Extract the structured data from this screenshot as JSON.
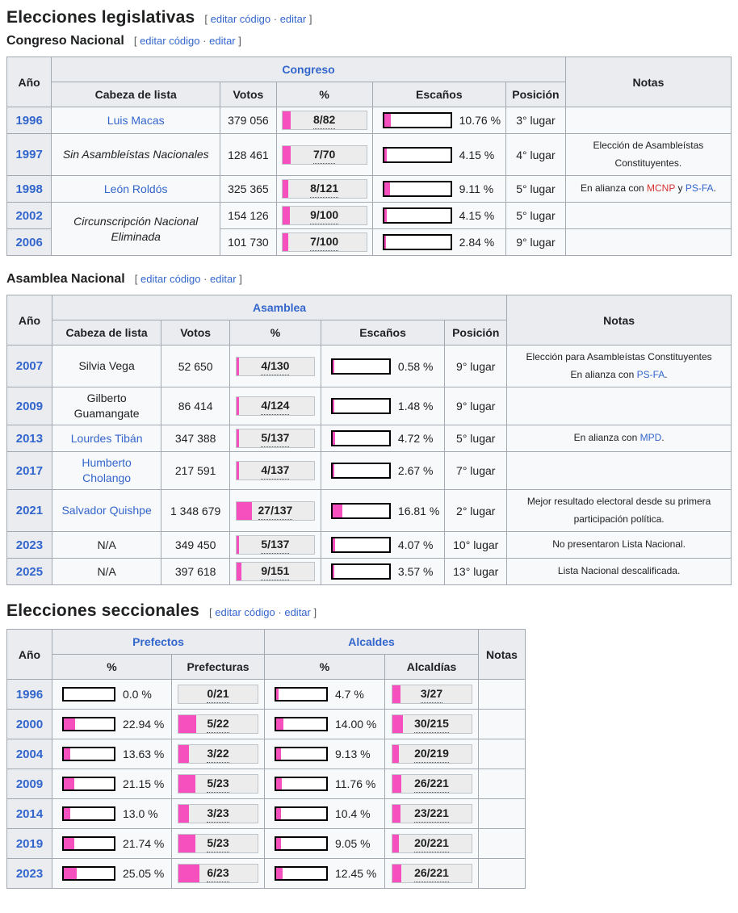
{
  "colors": {
    "pink": "#F650BE",
    "link": "#3366CC",
    "red": "#D73333"
  },
  "edit": {
    "open": "[",
    "code": "editar código",
    "sep": "·",
    "plain": "editar",
    "close": "]"
  },
  "headings": {
    "legislativas": "Elecciones legislativas",
    "congreso": "Congreso Nacional",
    "asamblea": "Asamblea Nacional",
    "seccionales": "Elecciones seccionales"
  },
  "congreso": {
    "header": {
      "year": "Año",
      "group": "Congreso",
      "cols": [
        "Cabeza de lista",
        "Votos",
        "%",
        "Escaños",
        "Posición"
      ],
      "notes": "Notas"
    },
    "rows": [
      {
        "year": "1996",
        "head": "Luis Macas",
        "votes": "379 056",
        "seats": {
          "label": "8/82",
          "fill": 9.76
        },
        "pct": {
          "label": "10.76 %",
          "fill": 10.76
        },
        "pos": "3° lugar"
      },
      {
        "year": "1997",
        "head": "Sin Asambleístas Nacionales",
        "votes": "128 461",
        "seats": {
          "label": "7/70",
          "fill": 10.0
        },
        "pct": {
          "label": "4.15 %",
          "fill": 4.15
        },
        "pos": "4° lugar",
        "note": [
          {
            "t": "Elección de Asambleístas Constituyentes."
          }
        ]
      },
      {
        "year": "1998",
        "head": "León Roldós",
        "votes": "325 365",
        "seats": {
          "label": "8/121",
          "fill": 6.61
        },
        "pct": {
          "label": "9.11 %",
          "fill": 9.11
        },
        "pos": "5° lugar",
        "note": [
          {
            "t": "En alianza con "
          },
          {
            "t": "MCNP"
          },
          {
            "t": " y "
          },
          {
            "t": "PS-FA"
          },
          {
            "t": "."
          }
        ]
      },
      {
        "year": "2002",
        "head": "Circunscripción Nacional Eliminada",
        "votes": "154 126",
        "seats": {
          "label": "9/100",
          "fill": 9.0
        },
        "pct": {
          "label": "4.15 %",
          "fill": 4.15
        },
        "pos": "5° lugar"
      },
      {
        "year": "2006",
        "votes": "101 730",
        "seats": {
          "label": "7/100",
          "fill": 7.0
        },
        "pct": {
          "label": "2.84 %",
          "fill": 2.84
        },
        "pos": "9° lugar"
      }
    ]
  },
  "asamblea": {
    "header": {
      "year": "Año",
      "group": "Asamblea",
      "cols": [
        "Cabeza de lista",
        "Votos",
        "%",
        "Escaños",
        "Posición"
      ],
      "notes": "Notas"
    },
    "rows": [
      {
        "year": "2007",
        "head": "Silvia Vega",
        "votes": "52 650",
        "seats": {
          "label": "4/130",
          "fill": 3.08
        },
        "pct": {
          "label": "0.58 %",
          "fill": 0.58
        },
        "pos": "9° lugar",
        "note": [
          {
            "t": "Elección para Asambleístas Constituyentes"
          }
        ],
        "note2": [
          {
            "t": "En alianza con "
          },
          {
            "t": "PS-FA"
          },
          {
            "t": "."
          }
        ]
      },
      {
        "year": "2009",
        "head": "Gilberto Guamangate",
        "votes": "86 414",
        "seats": {
          "label": "4/124",
          "fill": 3.23
        },
        "pct": {
          "label": "1.48 %",
          "fill": 1.48
        },
        "pos": "9° lugar"
      },
      {
        "year": "2013",
        "head": "Lourdes Tibán",
        "votes": "347 388",
        "seats": {
          "label": "5/137",
          "fill": 3.65
        },
        "pct": {
          "label": "4.72 %",
          "fill": 4.72
        },
        "pos": "5° lugar",
        "note": [
          {
            "t": "En alianza con "
          },
          {
            "t": "MPD"
          },
          {
            "t": "."
          }
        ]
      },
      {
        "year": "2017",
        "head": "Humberto Cholango",
        "votes": "217 591",
        "seats": {
          "label": "4/137",
          "fill": 2.92
        },
        "pct": {
          "label": "2.67 %",
          "fill": 2.67
        },
        "pos": "7° lugar"
      },
      {
        "year": "2021",
        "head": "Salvador Quishpe",
        "votes": "1 348 679",
        "seats": {
          "label": "27/137",
          "fill": 19.71
        },
        "pct": {
          "label": "16.81 %",
          "fill": 16.81
        },
        "pos": "2° lugar",
        "note": [
          {
            "t": "Mejor resultado electoral desde su primera participación política."
          }
        ]
      },
      {
        "year": "2023",
        "head": "N/A",
        "votes": "349 450",
        "seats": {
          "label": "5/137",
          "fill": 3.65
        },
        "pct": {
          "label": "4.07 %",
          "fill": 4.07
        },
        "pos": "10° lugar",
        "note": [
          {
            "t": "No presentaron Lista Nacional."
          }
        ]
      },
      {
        "year": "2025",
        "head": "N/A",
        "votes": "397 618",
        "seats": {
          "label": "9/151",
          "fill": 5.96
        },
        "pct": {
          "label": "3.57 %",
          "fill": 3.57
        },
        "pos": "13° lugar",
        "note": [
          {
            "t": "Lista Nacional descalificada."
          }
        ]
      }
    ]
  },
  "seccionales": {
    "header": {
      "year": "Año",
      "group1": "Prefectos",
      "group2": "Alcaldes",
      "sub": [
        "%",
        "Prefecturas",
        "%",
        "Alcaldías"
      ],
      "notes": "Notas"
    },
    "rows": [
      {
        "year": "1996",
        "p_pct": {
          "label": "0.0 %",
          "fill": 0
        },
        "pref": {
          "label": "0/21",
          "fill": 0
        },
        "a_pct": {
          "label": "4.7 %",
          "fill": 4.7
        },
        "alc": {
          "label": "3/27",
          "fill": 11.11
        }
      },
      {
        "year": "2000",
        "p_pct": {
          "label": "22.94 %",
          "fill": 22.94
        },
        "pref": {
          "label": "5/22",
          "fill": 22.73
        },
        "a_pct": {
          "label": "14.00 %",
          "fill": 14.0
        },
        "alc": {
          "label": "30/215",
          "fill": 13.95
        }
      },
      {
        "year": "2004",
        "p_pct": {
          "label": "13.63 %",
          "fill": 13.63
        },
        "pref": {
          "label": "3/22",
          "fill": 13.64
        },
        "a_pct": {
          "label": "9.13 %",
          "fill": 9.13
        },
        "alc": {
          "label": "20/219",
          "fill": 9.13
        }
      },
      {
        "year": "2009",
        "p_pct": {
          "label": "21.15 %",
          "fill": 21.15
        },
        "pref": {
          "label": "5/23",
          "fill": 21.74
        },
        "a_pct": {
          "label": "11.76 %",
          "fill": 11.76
        },
        "alc": {
          "label": "26/221",
          "fill": 11.76
        }
      },
      {
        "year": "2014",
        "p_pct": {
          "label": "13.0 %",
          "fill": 13.0
        },
        "pref": {
          "label": "3/23",
          "fill": 13.04
        },
        "a_pct": {
          "label": "10.4 %",
          "fill": 10.4
        },
        "alc": {
          "label": "23/221",
          "fill": 10.41
        }
      },
      {
        "year": "2019",
        "p_pct": {
          "label": "21.74 %",
          "fill": 21.74
        },
        "pref": {
          "label": "5/23",
          "fill": 21.74
        },
        "a_pct": {
          "label": "9.05 %",
          "fill": 9.05
        },
        "alc": {
          "label": "20/221",
          "fill": 9.05
        }
      },
      {
        "year": "2023",
        "p_pct": {
          "label": "25.05 %",
          "fill": 25.05
        },
        "pref": {
          "label": "6/23",
          "fill": 26.09
        },
        "a_pct": {
          "label": "12.45 %",
          "fill": 12.45
        },
        "alc": {
          "label": "26/221",
          "fill": 11.76
        }
      }
    ]
  }
}
